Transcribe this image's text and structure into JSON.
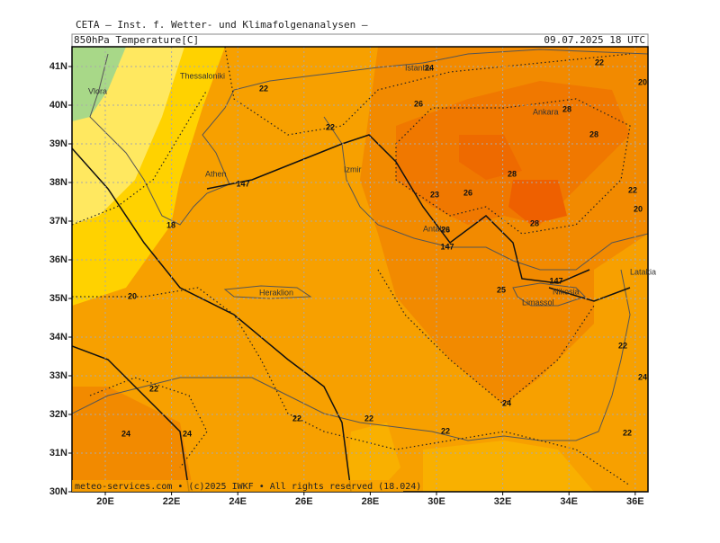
{
  "header": {
    "institute": "CETA — Inst. f. Wetter- und Klimafolgenanalysen —",
    "field": "850hPa Temperature[C]",
    "valid_time": "09.07.2025 18 UTC"
  },
  "map": {
    "lat_ticks": [
      {
        "value": 30,
        "label": "30N"
      },
      {
        "value": 31,
        "label": "31N"
      },
      {
        "value": 32,
        "label": "32N"
      },
      {
        "value": 33,
        "label": "33N"
      },
      {
        "value": 34,
        "label": "34N"
      },
      {
        "value": 35,
        "label": "35N"
      },
      {
        "value": 36,
        "label": "36N"
      },
      {
        "value": 37,
        "label": "37N"
      },
      {
        "value": 38,
        "label": "38N"
      },
      {
        "value": 39,
        "label": "39N"
      },
      {
        "value": 40,
        "label": "40N"
      },
      {
        "value": 41,
        "label": "41N"
      }
    ],
    "lon_ticks": [
      {
        "value": 20,
        "label": "20E"
      },
      {
        "value": 22,
        "label": "22E"
      },
      {
        "value": 24,
        "label": "24E"
      },
      {
        "value": 26,
        "label": "26E"
      },
      {
        "value": 28,
        "label": "28E"
      },
      {
        "value": 30,
        "label": "30E"
      },
      {
        "value": 32,
        "label": "32E"
      },
      {
        "value": 34,
        "label": "34E"
      },
      {
        "value": 36,
        "label": "36E"
      }
    ],
    "places": [
      "Vlora",
      "Thessaloniki",
      "Athen",
      "Izmir",
      "Istanbul",
      "Ankara",
      "Antalya",
      "Heraklion",
      "Limassol",
      "Nikosia",
      "Latakia"
    ],
    "contour_labels": [
      22,
      22,
      24,
      22,
      26,
      28,
      28,
      28,
      26,
      23,
      22,
      20,
      28,
      26,
      18,
      20,
      147,
      147,
      147,
      25,
      22,
      24,
      22,
      22,
      22,
      22,
      24,
      24,
      24,
      22,
      20
    ]
  },
  "footer": "meteo-services.com • (c)2025 IWKF • All rights reserved (18.024)"
}
